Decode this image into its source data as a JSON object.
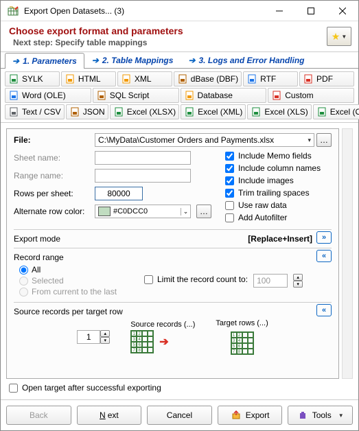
{
  "window": {
    "title": "Export Open Datasets... (3)"
  },
  "header": {
    "title": "Choose export format and parameters",
    "subtitle": "Next step: Specify table mappings"
  },
  "tabs": [
    {
      "label": "1. Parameters",
      "active": true
    },
    {
      "label": "2. Table Mappings",
      "active": false
    },
    {
      "label": "3. Logs and Error Handling",
      "active": false
    }
  ],
  "formats": {
    "row1": [
      {
        "label": "SYLK",
        "color": "#1e8e3e"
      },
      {
        "label": "HTML",
        "color": "#f29900"
      },
      {
        "label": "XML",
        "color": "#f29900"
      },
      {
        "label": "dBase (DBF)",
        "color": "#b06000"
      },
      {
        "label": "RTF",
        "color": "#1a73e8"
      },
      {
        "label": "PDF",
        "color": "#d93025"
      }
    ],
    "row2": [
      {
        "label": "Word (OLE)",
        "color": "#1a73e8"
      },
      {
        "label": "SQL Script",
        "color": "#b06000"
      },
      {
        "label": "Database",
        "color": "#f29900"
      },
      {
        "label": "Custom",
        "color": "#d93025"
      }
    ],
    "row3": [
      {
        "label": "Text / CSV",
        "color": "#5f6368"
      },
      {
        "label": "JSON",
        "color": "#b06000"
      },
      {
        "label": "Excel (XLSX)",
        "color": "#1e8e3e"
      },
      {
        "label": "Excel (XML)",
        "color": "#1e8e3e"
      },
      {
        "label": "Excel (XLS)",
        "color": "#1e8e3e"
      },
      {
        "label": "Excel (OLE)",
        "color": "#1e8e3e"
      }
    ]
  },
  "file": {
    "label": "File:",
    "value": "C:\\MyData\\Customer Orders and Payments.xlsx"
  },
  "fields": {
    "sheet_name_label": "Sheet name:",
    "sheet_name_value": "",
    "range_name_label": "Range name:",
    "range_name_value": "",
    "rows_per_sheet_label": "Rows per sheet:",
    "rows_per_sheet_value": "80000",
    "alt_color_label": "Alternate row color:",
    "alt_color_value": "#C0DCC0",
    "alt_color_swatch": "#C0DCC0"
  },
  "checks": {
    "include_memo": {
      "label": "Include Memo fields",
      "checked": true
    },
    "include_columns": {
      "label": "Include column names",
      "checked": true
    },
    "include_images": {
      "label": "Include images",
      "checked": true
    },
    "trim_spaces": {
      "label": "Trim trailing spaces",
      "checked": true
    },
    "raw_data": {
      "label": "Use raw data",
      "checked": false
    },
    "autofilter": {
      "label": "Add Autofilter",
      "checked": false
    }
  },
  "export_mode": {
    "label": "Export mode",
    "value": "[Replace+Insert]"
  },
  "record_range": {
    "label": "Record range",
    "all": "All",
    "selected": "Selected",
    "from_current": "From current to the last",
    "limit_label": "Limit the record count to:",
    "limit_checked": false,
    "limit_value": "100"
  },
  "per_row": {
    "label": "Source records per target row",
    "value": "1",
    "src_label": "Source records (...)",
    "tgt_label": "Target rows (...)"
  },
  "footer_check": {
    "label": "Open target after successful exporting",
    "checked": false
  },
  "buttons": {
    "back": "Back",
    "next": "Next",
    "cancel": "Cancel",
    "export": "Export",
    "tools": "Tools"
  }
}
